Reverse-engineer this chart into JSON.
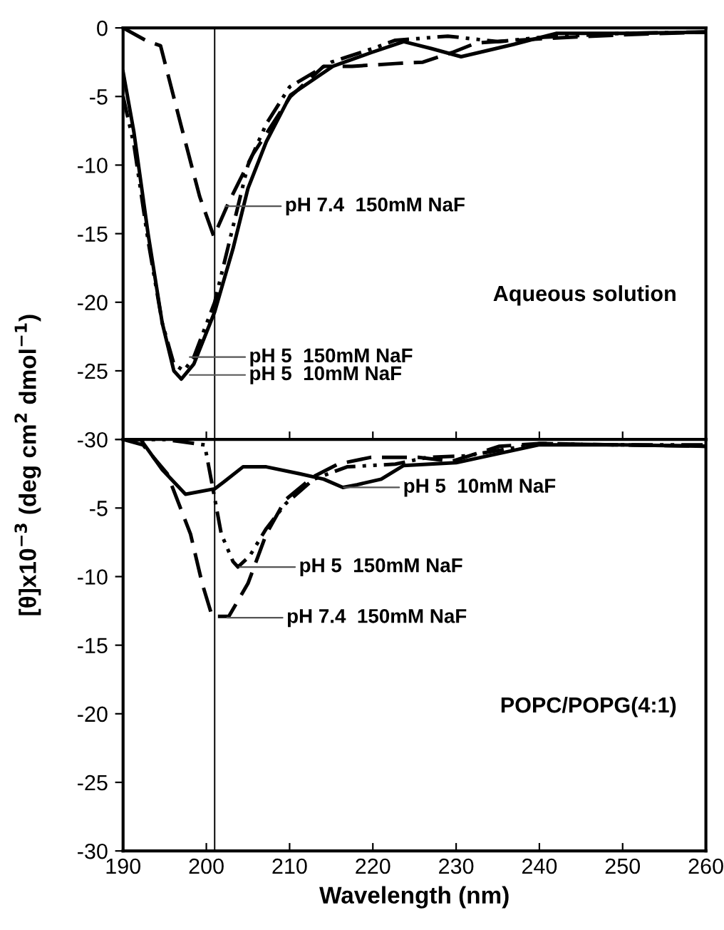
{
  "chart_data": [
    {
      "type": "line",
      "ylabel": "[θ]x10$^{−3}$ (deg cm$^{2}$ dmol$^{−1}$)",
      "xlim": [
        190,
        260
      ],
      "xticks": [
        190,
        200,
        210,
        220,
        230,
        240,
        250,
        260
      ],
      "ylim": [
        -30,
        0
      ],
      "yticks": [
        0,
        -5,
        -10,
        -15,
        -20,
        -25,
        -30
      ],
      "tick_labels": "y",
      "grid": false,
      "legend": false,
      "marker": "none",
      "ref_lines": [
        {
          "axis": "x",
          "value": 201,
          "color": "#000000"
        }
      ],
      "series": [
        {
          "color": "#000000",
          "line_style": "solid",
          "x": [
            190,
            191.3,
            193,
            194.7,
            196.1,
            197,
            198.5,
            201,
            203.2,
            205,
            207.2,
            210.1,
            215.2,
            219.8,
            223.7,
            227,
            230.6,
            236.9,
            242,
            250,
            260
          ],
          "values": [
            -3.2,
            -7.6,
            -15,
            -21.5,
            -25,
            -25.6,
            -24.5,
            -20.7,
            -16.1,
            -11.7,
            -8.3,
            -4.9,
            -2.8,
            -1.8,
            -1,
            -1.5,
            -2.1,
            -1.2,
            -0.4,
            -0.4,
            -0.3
          ]
        },
        {
          "color": "#000000",
          "line_style": "dashdotdot",
          "x": [
            190,
            191.3,
            193,
            194.7,
            196.1,
            197.3,
            198.5,
            201,
            203,
            205,
            207.2,
            210,
            215,
            220,
            222.7,
            225,
            229,
            235,
            240,
            250,
            260
          ],
          "values": [
            -5,
            -8.5,
            -15.5,
            -21.5,
            -24.5,
            -25,
            -24,
            -20,
            -15,
            -10,
            -7,
            -4.3,
            -2.5,
            -1.5,
            -0.9,
            -0.8,
            -0.6,
            -1,
            -0.7,
            -0.4,
            -0.3
          ]
        },
        {
          "color": "#000000",
          "line_style": "dashed",
          "x": [
            190,
            193,
            194.5,
            197,
            199.2,
            200.9,
            202.7,
            205.5,
            210.1,
            214.1,
            217.5,
            222.7,
            226,
            229.5,
            232.4,
            240,
            250,
            260
          ],
          "values": [
            0,
            -1,
            -1.3,
            -7.2,
            -12.3,
            -15.2,
            -12.7,
            -9.3,
            -5,
            -2.8,
            -2.8,
            -2.6,
            -2.5,
            -1.8,
            -1.1,
            -0.8,
            -0.5,
            -0.3
          ]
        }
      ],
      "annotations": [
        {
          "text": "pH 7.4  150mM NaF",
          "x": 202.3,
          "y": -13
        },
        {
          "text": "pH 5  150mM NaF",
          "x": 198,
          "y": -24
        },
        {
          "text": "pH 5  10mM NaF",
          "x": 198,
          "y": -25.3
        },
        "Aqueous solution"
      ]
    },
    {
      "type": "line",
      "xlabel": "Wavelength (nm)",
      "xlim": [
        190,
        260
      ],
      "xticks": [
        190,
        200,
        210,
        220,
        230,
        240,
        250,
        260
      ],
      "ylim": [
        -30,
        0
      ],
      "yticks": [
        {
          "value": 0,
          "label": null
        },
        -5,
        -10,
        -15,
        -20,
        -25,
        -30
      ],
      "grid": false,
      "legend": false,
      "marker": "none",
      "ref_lines": [
        {
          "axis": "x",
          "value": 201,
          "color": "#000000"
        }
      ],
      "series": [
        {
          "color": "#000000",
          "line_style": "solid",
          "x": [
            190,
            192.1,
            194.7,
            197.5,
            201,
            202.1,
            204.4,
            207.2,
            211.2,
            214.1,
            216.4,
            218.1,
            221,
            223.7,
            230,
            239.9,
            250,
            260
          ],
          "values": [
            0,
            0,
            -2.2,
            -4,
            -3.6,
            -3.1,
            -2,
            -2,
            -2.5,
            -2.9,
            -3.5,
            -3.3,
            -2.9,
            -1.9,
            -1.7,
            -0.4,
            -0.4,
            -0.5
          ]
        },
        {
          "color": "#000000",
          "line_style": "dashdotdot",
          "x": [
            190,
            195,
            199.8,
            200.7,
            201.8,
            203.2,
            203.8,
            205.2,
            207.2,
            209.5,
            212.9,
            216.9,
            222.7,
            226.6,
            231.2,
            240,
            250,
            260
          ],
          "values": [
            0,
            0,
            -0.4,
            -3.3,
            -6.9,
            -8.9,
            -9.3,
            -8.5,
            -6.5,
            -4.7,
            -2.9,
            -2,
            -1.8,
            -1.3,
            -1.2,
            -0.3,
            -0.4,
            -0.4
          ]
        },
        {
          "color": "#000000",
          "line_style": "dashed",
          "x": [
            190,
            192.4,
            195.3,
            198.1,
            199.5,
            200.7,
            202.7,
            205,
            207.2,
            209.5,
            212.9,
            215.8,
            219.8,
            225.5,
            229.5,
            235.2,
            240,
            250,
            260
          ],
          "values": [
            0,
            -0.4,
            -2.5,
            -6.9,
            -10.5,
            -12.9,
            -12.9,
            -10.5,
            -6.9,
            -4.4,
            -2.7,
            -1.8,
            -1.3,
            -1.3,
            -1.6,
            -0.5,
            -0.3,
            -0.4,
            -0.5
          ]
        }
      ],
      "annotations": [
        {
          "text": "pH 5  10mM NaF",
          "x": 216.5,
          "y": -3.5
        },
        {
          "text": "pH 5  150mM NaF",
          "x": 204,
          "y": -9.3
        },
        {
          "text": "pH 7.4  150mM NaF",
          "x": 202.5,
          "y": -13
        },
        "POPC/POPG(4:1)"
      ]
    }
  ]
}
